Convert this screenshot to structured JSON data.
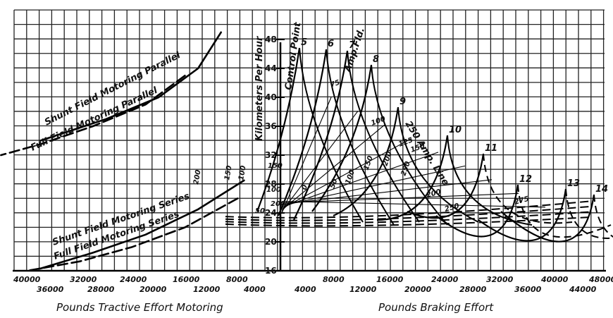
{
  "chart_data": {
    "type": "line",
    "y_axis": {
      "title": "Kilometers Per Hour",
      "ticks": [
        16,
        20,
        24,
        28,
        32,
        36,
        40,
        44,
        48
      ],
      "range": [
        16,
        50
      ]
    },
    "left_axis": {
      "title": "Pounds Tractive Effort Motoring",
      "upper_ticks": [
        "40000",
        "32000",
        "24000",
        "16000",
        "8000"
      ],
      "lower_ticks": [
        "36000",
        "28000",
        "20000",
        "12000",
        "4000"
      ],
      "range": [
        0,
        40000
      ]
    },
    "right_axis": {
      "title": "Pounds Braking Effort",
      "upper_ticks": [
        "8000",
        "16000",
        "24000",
        "32000",
        "40000",
        "48000"
      ],
      "lower_ticks": [
        "4000",
        "12000",
        "20000",
        "28000",
        "36000",
        "44000"
      ],
      "range": [
        0,
        48000
      ]
    },
    "motoring_curves": [
      {
        "name": "Shunt Field Motoring Parallel",
        "style": "solid",
        "points": [
          [
            8500,
            49
          ],
          [
            12000,
            44
          ],
          [
            18000,
            40
          ],
          [
            26000,
            37
          ],
          [
            36000,
            34
          ]
        ]
      },
      {
        "name": "Full Field Motoring Parallel",
        "style": "dashed",
        "points": [
          [
            14000,
            43
          ],
          [
            20000,
            39
          ],
          [
            28000,
            36
          ],
          [
            36000,
            33.5
          ],
          [
            42000,
            32
          ]
        ]
      },
      {
        "name": "Shunt Field Motoring Series",
        "style": "solid",
        "points": [
          [
            5000,
            28.5
          ],
          [
            12000,
            24.5
          ],
          [
            20000,
            21
          ],
          [
            28000,
            18.5
          ],
          [
            36000,
            16.3
          ]
        ]
      },
      {
        "name": "Full Field Motoring Series",
        "style": "dashed",
        "points": [
          [
            6000,
            26
          ],
          [
            14000,
            22
          ],
          [
            22000,
            19.3
          ],
          [
            30000,
            17.3
          ],
          [
            38000,
            16
          ]
        ]
      }
    ],
    "control_points": {
      "title": "Control Point",
      "labels": [
        "5",
        "6",
        "7",
        "8",
        "9",
        "10",
        "11",
        "12",
        "13",
        "14"
      ]
    },
    "amp_field": {
      "title": "Amp.Fld.",
      "labels": [
        "0",
        "50",
        "100",
        "150",
        "200",
        "250",
        "75",
        "100",
        "125",
        "150",
        "200",
        "250",
        "275",
        "200",
        "150",
        "100",
        "50",
        "100",
        "150",
        "200"
      ]
    },
    "amp_line": {
      "title": "250 Amp. Line"
    }
  }
}
